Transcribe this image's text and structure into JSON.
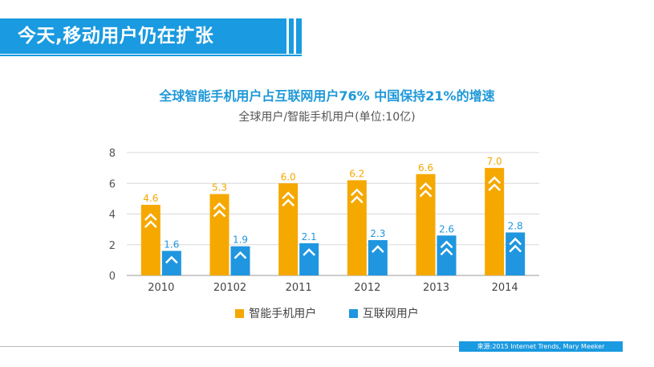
{
  "header": {
    "title": "今天,移动用户仍在扩张"
  },
  "chart_data": {
    "type": "bar",
    "title": "全球智能手机用户占互联网用户76% 中国保持21%的增速",
    "subtitle": "全球用户/智能手机用户(单位:10亿)",
    "categories": [
      "2010",
      "20102",
      "2011",
      "2012",
      "2013",
      "2014"
    ],
    "series": [
      {
        "name": "智能手机用户",
        "values": [
          4.6,
          5.3,
          6.0,
          6.2,
          6.6,
          7.0
        ],
        "labels": [
          "4.6",
          "5.3",
          "6.0",
          "6.2",
          "6.6",
          "7.0"
        ],
        "color": "#f5a800"
      },
      {
        "name": "互联网用户",
        "values": [
          1.6,
          1.9,
          2.1,
          2.3,
          2.6,
          2.8
        ],
        "labels": [
          "1.6",
          "1.9",
          "2.1",
          "2.3",
          "2.6",
          "2.8"
        ],
        "color": "#1f96df"
      }
    ],
    "ylim": [
      0,
      8
    ],
    "yticks": [
      "0",
      "2",
      "4",
      "6",
      "8"
    ],
    "grid": true,
    "legend_position": "bottom"
  },
  "footer": {
    "source": "来源:2015 Internet Trends, Mary Meeker"
  }
}
